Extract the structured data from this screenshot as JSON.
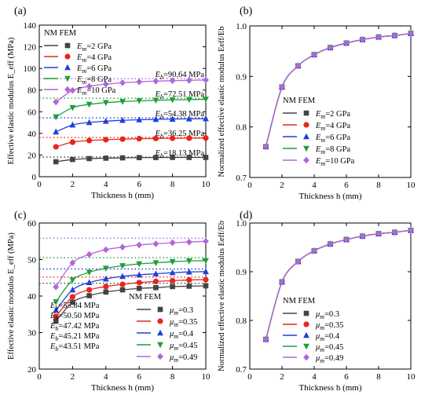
{
  "chart_data": [
    {
      "panel": "(a)",
      "type": "line",
      "xlabel": "Thickness h (mm)",
      "ylabel": "Effective elastic modulus E_eff (MPa)",
      "xlim": [
        0,
        10
      ],
      "ylim": [
        0,
        140
      ],
      "xticks": [
        "0",
        "2",
        "4",
        "6",
        "8",
        "10"
      ],
      "yticks": [
        "0",
        "20",
        "40",
        "60",
        "80",
        "100",
        "120",
        "140"
      ],
      "legend_header": "NM FEM",
      "x": [
        1,
        2,
        3,
        4,
        5,
        6,
        7,
        8,
        9,
        10
      ],
      "series": [
        {
          "name": "Em=2 GPa",
          "color": "#444444",
          "marker": "square",
          "reference": 18.13,
          "reference_label": "Eb=18.13 MPa",
          "values": [
            13.8,
            15.9,
            16.7,
            17.1,
            17.4,
            17.6,
            17.7,
            17.8,
            17.8,
            17.8
          ]
        },
        {
          "name": "Em=4 GPa",
          "color": "#e8261c",
          "marker": "circle",
          "reference": 36.25,
          "reference_label": "Eb=36.25 MPa",
          "values": [
            27.6,
            31.9,
            33.4,
            34.2,
            34.7,
            35.1,
            35.3,
            35.5,
            35.6,
            35.7
          ]
        },
        {
          "name": "Em=6 GPa",
          "color": "#1f3fd8",
          "marker": "triangle-up",
          "reference": 54.38,
          "reference_label": "Eb=54.38 MPa",
          "values": [
            41.4,
            47.8,
            50.1,
            51.3,
            52.1,
            52.6,
            53.0,
            53.2,
            53.4,
            53.6
          ]
        },
        {
          "name": "Em=8 GPa",
          "color": "#1e9e3a",
          "marker": "triangle-down",
          "reference": 72.51,
          "reference_label": "Eb=72.51 MPa",
          "values": [
            55.2,
            63.8,
            66.8,
            68.4,
            69.4,
            70.1,
            70.6,
            71.0,
            71.2,
            71.5
          ]
        },
        {
          "name": "Em=10 GPa",
          "color": "#b067d8",
          "marker": "diamond",
          "reference": 90.64,
          "reference_label": "Eb=90.64 MPa",
          "values": [
            69.0,
            79.7,
            83.5,
            85.5,
            86.8,
            87.6,
            88.3,
            88.7,
            89.0,
            89.3
          ]
        }
      ]
    },
    {
      "panel": "(b)",
      "type": "line",
      "xlabel": "Thickness h (mm)",
      "ylabel": "Normalized effective elastic modulus Eeff/Eb",
      "xlim": [
        0,
        10
      ],
      "ylim": [
        0.7,
        1.0
      ],
      "xticks": [
        "0",
        "2",
        "4",
        "6",
        "8",
        "10"
      ],
      "yticks": [
        "0.7",
        "0.8",
        "0.9",
        "1.0"
      ],
      "legend_header": "NM FEM",
      "x": [
        1,
        2,
        3,
        4,
        5,
        6,
        7,
        8,
        9,
        10
      ],
      "values": [
        0.761,
        0.879,
        0.921,
        0.943,
        0.957,
        0.966,
        0.973,
        0.978,
        0.981,
        0.985
      ],
      "series": [
        {
          "name": "Em=2 GPa",
          "color": "#444444",
          "marker": "square"
        },
        {
          "name": "Em=4 GPa",
          "color": "#e8261c",
          "marker": "circle"
        },
        {
          "name": "Em=6 GPa",
          "color": "#1f3fd8",
          "marker": "triangle-up"
        },
        {
          "name": "Em=8 GPa",
          "color": "#1e9e3a",
          "marker": "triangle-down"
        },
        {
          "name": "Em=10 GPa",
          "color": "#b067d8",
          "marker": "diamond"
        }
      ]
    },
    {
      "panel": "(c)",
      "type": "line",
      "xlabel": "Thickness h (mm)",
      "ylabel": "Effective elastic modulus E_eff (MPa)",
      "xlim": [
        0,
        10
      ],
      "ylim": [
        20,
        60
      ],
      "xticks": [
        "0",
        "2",
        "4",
        "6",
        "8",
        "10"
      ],
      "yticks": [
        "20",
        "30",
        "40",
        "50",
        "60"
      ],
      "legend_header": "NM FEM",
      "x": [
        1,
        2,
        3,
        4,
        5,
        6,
        7,
        8,
        9,
        10
      ],
      "series": [
        {
          "name": "μm=0.3",
          "color": "#444444",
          "marker": "square",
          "reference": 43.51,
          "reference_label": "Eb=43.51 MPa",
          "values": [
            33.1,
            38.3,
            40.1,
            41.1,
            41.7,
            42.1,
            42.3,
            42.6,
            42.7,
            42.8
          ]
        },
        {
          "name": "μm=0.35",
          "color": "#e8261c",
          "marker": "circle",
          "reference": 45.21,
          "reference_label": "Eb=45.21 MPa",
          "values": [
            34.4,
            39.8,
            41.7,
            42.6,
            43.2,
            43.7,
            44.0,
            44.2,
            44.4,
            44.5
          ]
        },
        {
          "name": "μm=0.4",
          "color": "#1f3fd8",
          "marker": "triangle-up",
          "reference": 47.42,
          "reference_label": "Eb=47.42 MPa",
          "values": [
            36.1,
            41.7,
            43.7,
            44.7,
            45.4,
            45.8,
            46.1,
            46.4,
            46.6,
            46.7
          ]
        },
        {
          "name": "μm=0.45",
          "color": "#1e9e3a",
          "marker": "triangle-down",
          "reference": 50.5,
          "reference_label": "Eb=50.50 MPa",
          "values": [
            38.4,
            44.4,
            46.5,
            47.6,
            48.3,
            48.8,
            49.1,
            49.4,
            49.6,
            49.7
          ]
        },
        {
          "name": "μm=0.49",
          "color": "#b067d8",
          "marker": "diamond",
          "reference": 55.84,
          "reference_label": "Eb=55.84 MPa",
          "values": [
            42.5,
            49.1,
            51.4,
            52.7,
            53.4,
            54.0,
            54.3,
            54.6,
            54.8,
            55.0
          ]
        }
      ]
    },
    {
      "panel": "(d)",
      "type": "line",
      "xlabel": "Thickness h (mm)",
      "ylabel": "Normalized effective elastic modulus Eeff/Eb",
      "xlim": [
        0,
        10
      ],
      "ylim": [
        0.7,
        1.0
      ],
      "xticks": [
        "0",
        "2",
        "4",
        "6",
        "8",
        "10"
      ],
      "yticks": [
        "0.7",
        "0.8",
        "0.9",
        "1.0"
      ],
      "legend_header": "NM  FEM",
      "x": [
        1,
        2,
        3,
        4,
        5,
        6,
        7,
        8,
        9,
        10
      ],
      "values": [
        0.761,
        0.879,
        0.921,
        0.943,
        0.957,
        0.966,
        0.973,
        0.978,
        0.981,
        0.985
      ],
      "series": [
        {
          "name": "μm=0.3",
          "color": "#444444",
          "marker": "square"
        },
        {
          "name": "μm=0.35",
          "color": "#e8261c",
          "marker": "circle"
        },
        {
          "name": "μm=0.4",
          "color": "#1f3fd8",
          "marker": "triangle-up"
        },
        {
          "name": "μm=0.45",
          "color": "#1e9e3a",
          "marker": "triangle-down"
        },
        {
          "name": "μm=0.49",
          "color": "#b067d8",
          "marker": "diamond"
        }
      ]
    }
  ]
}
